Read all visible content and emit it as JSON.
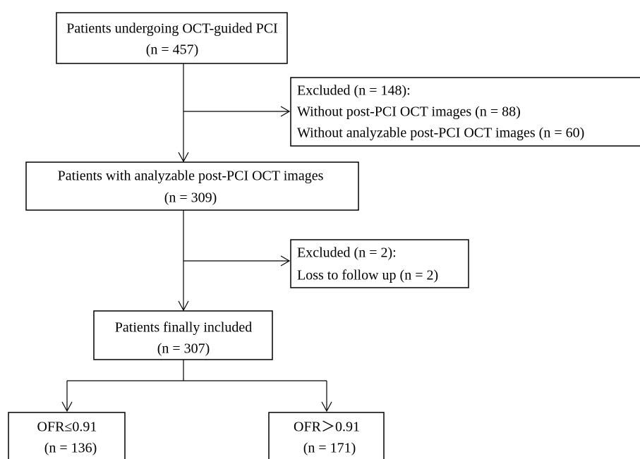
{
  "nodes": [
    {
      "lines": [
        "Patients undergoing OCT-guided PCI",
        "(n = 457)"
      ]
    },
    {
      "lines": [
        "Excluded (n = 148):",
        "Without post-PCI OCT images (n = 88)",
        "Without analyzable post-PCI OCT images (n = 60)"
      ]
    },
    {
      "lines": [
        "Patients with analyzable post-PCI OCT images",
        "(n = 309)"
      ]
    },
    {
      "lines": [
        "Excluded (n = 2):",
        "Loss to follow up (n = 2)"
      ]
    },
    {
      "lines": [
        "Patients finally included",
        "(n = 307)"
      ]
    },
    {
      "lines": [
        "OFR≤0.91",
        "(n = 136)"
      ]
    },
    {
      "lines": [
        "OFR＞0.91",
        "(n = 171)"
      ]
    }
  ]
}
